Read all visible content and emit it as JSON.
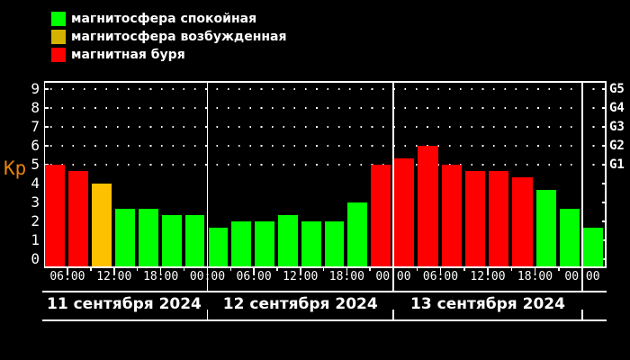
{
  "colors": {
    "background": "#000000",
    "foreground": "#ffffff",
    "kp_label": "#e8820f",
    "quiet": "#00ff00",
    "excited": "#ffc000",
    "excited_legend": "#d4b300",
    "storm": "#ff0000"
  },
  "legend": {
    "items": [
      {
        "label": "магнитосфера спокойная",
        "color": "#00ff00",
        "state": "quiet"
      },
      {
        "label": "магнитосфера возбужденная",
        "color": "#d4b300",
        "state": "excited"
      },
      {
        "label": "магнитная буря",
        "color": "#ff0000",
        "state": "storm"
      }
    ]
  },
  "chart_data": {
    "type": "bar",
    "title": "",
    "ylabel": "Kp",
    "ylim": [
      0,
      9.5
    ],
    "grid": "dotted horizontal gridlines at Kp 5..9 (G1..G5 levels)",
    "legend_position": "top-left",
    "y_ticks": [
      "0",
      "1",
      "2",
      "3",
      "4",
      "5",
      "6",
      "7",
      "8",
      "9"
    ],
    "x_tick_labels": [
      "06:00",
      "12:00",
      "18:00",
      "00:00"
    ],
    "right_axis_labels": [
      {
        "text": "G1",
        "kp": 5
      },
      {
        "text": "G2",
        "kp": 6
      },
      {
        "text": "G3",
        "kp": 7
      },
      {
        "text": "G4",
        "kp": 8
      },
      {
        "text": "G5",
        "kp": 9
      }
    ],
    "days": [
      {
        "date": "11 сентября 2024",
        "start_hour": 3,
        "values": [
          {
            "interval": "03:00-06:00",
            "kp": 5.0,
            "state": "storm"
          },
          {
            "interval": "06:00-09:00",
            "kp": 4.67,
            "state": "storm"
          },
          {
            "interval": "09:00-12:00",
            "kp": 4.0,
            "state": "excited"
          },
          {
            "interval": "12:00-15:00",
            "kp": 2.67,
            "state": "quiet"
          },
          {
            "interval": "15:00-18:00",
            "kp": 2.67,
            "state": "quiet"
          },
          {
            "interval": "18:00-21:00",
            "kp": 2.33,
            "state": "quiet"
          },
          {
            "interval": "21:00-00:00",
            "kp": 2.33,
            "state": "quiet"
          }
        ]
      },
      {
        "date": "12 сентября 2024",
        "start_hour": 0,
        "values": [
          {
            "interval": "00:00-03:00",
            "kp": 1.67,
            "state": "quiet"
          },
          {
            "interval": "03:00-06:00",
            "kp": 2.0,
            "state": "quiet"
          },
          {
            "interval": "06:00-09:00",
            "kp": 2.0,
            "state": "quiet"
          },
          {
            "interval": "09:00-12:00",
            "kp": 2.33,
            "state": "quiet"
          },
          {
            "interval": "12:00-15:00",
            "kp": 2.0,
            "state": "quiet"
          },
          {
            "interval": "15:00-18:00",
            "kp": 2.0,
            "state": "quiet"
          },
          {
            "interval": "18:00-21:00",
            "kp": 3.0,
            "state": "quiet"
          },
          {
            "interval": "21:00-00:00",
            "kp": 5.0,
            "state": "storm"
          }
        ]
      },
      {
        "date": "13 сентября 2024",
        "start_hour": 0,
        "values": [
          {
            "interval": "00:00-03:00",
            "kp": 5.33,
            "state": "storm"
          },
          {
            "interval": "03:00-06:00",
            "kp": 6.0,
            "state": "storm"
          },
          {
            "interval": "06:00-09:00",
            "kp": 5.0,
            "state": "storm"
          },
          {
            "interval": "09:00-12:00",
            "kp": 4.67,
            "state": "storm"
          },
          {
            "interval": "12:00-15:00",
            "kp": 4.67,
            "state": "storm"
          },
          {
            "interval": "15:00-18:00",
            "kp": 4.33,
            "state": "storm"
          },
          {
            "interval": "18:00-21:00",
            "kp": 3.67,
            "state": "quiet"
          },
          {
            "interval": "21:00-00:00",
            "kp": 2.67,
            "state": "quiet"
          }
        ]
      },
      {
        "date": "",
        "start_hour": 0,
        "values": [
          {
            "interval": "00:00-03:00",
            "kp": 1.67,
            "state": "quiet"
          }
        ]
      }
    ]
  }
}
